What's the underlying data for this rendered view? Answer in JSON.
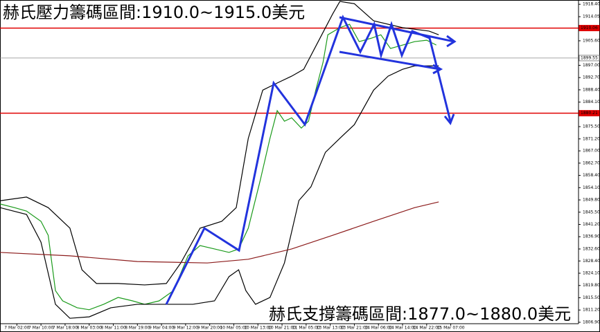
{
  "chart_data": {
    "type": "line",
    "annotations": [
      "赫氏壓力籌碼區間:1910.0~1915.0美元",
      "赫氏支撐籌碼區間:1877.0~1880.0美元"
    ],
    "xlim": [
      0,
      240
    ],
    "xticks": [
      {
        "value": 7,
        "label": "7 Mar 02:00"
      },
      {
        "value": 17,
        "label": "7 Mar 10:00"
      },
      {
        "value": 27,
        "label": "7 Mar 18:00"
      },
      {
        "value": 37,
        "label": "8 Mar 03:00"
      },
      {
        "value": 47,
        "label": "8 Mar 11:00"
      },
      {
        "value": 57,
        "label": "8 Mar 19:00"
      },
      {
        "value": 67,
        "label": "9 Mar 04:00"
      },
      {
        "value": 77,
        "label": "9 Mar 12:00"
      },
      {
        "value": 87,
        "label": "9 Mar 20:00"
      },
      {
        "value": 97,
        "label": "10 Mar 05:00"
      },
      {
        "value": 107,
        "label": "10 Mar 13:00"
      },
      {
        "value": 117,
        "label": "10 Mar 21:00"
      },
      {
        "value": 127,
        "label": "11 Mar 05:00"
      },
      {
        "value": 137,
        "label": "13 Mar 13:00"
      },
      {
        "value": 147,
        "label": "13 Mar 21:00"
      },
      {
        "value": 157,
        "label": "14 Mar 06:00"
      },
      {
        "value": 167,
        "label": "14 Mar 14:00"
      },
      {
        "value": 177,
        "label": "14 Mar 22:00"
      },
      {
        "value": 187,
        "label": "15 Mar 07:00"
      }
    ],
    "ylim": [
      1806.4,
      1919.9
    ],
    "yticks": [
      {
        "value": 1918.4,
        "label": "1918.40"
      },
      {
        "value": 1914.05,
        "label": "1914.05"
      },
      {
        "value": 1905.6,
        "label": "1905.60"
      },
      {
        "value": 1897.0,
        "label": "1897.00"
      },
      {
        "value": 1892.7,
        "label": "1892.70"
      },
      {
        "value": 1888.4,
        "label": "1888.40"
      },
      {
        "value": 1884.1,
        "label": "1884.10"
      },
      {
        "value": 1875.5,
        "label": "1875.50"
      },
      {
        "value": 1871.2,
        "label": "1871.20"
      },
      {
        "value": 1867.0,
        "label": "1867.00"
      },
      {
        "value": 1862.7,
        "label": "1862.70"
      },
      {
        "value": 1858.4,
        "label": "1858.40"
      },
      {
        "value": 1854.1,
        "label": "1854.10"
      },
      {
        "value": 1849.8,
        "label": "1849.80"
      },
      {
        "value": 1845.5,
        "label": "1845.50"
      },
      {
        "value": 1841.2,
        "label": "1841.20"
      },
      {
        "value": 1836.9,
        "label": "1836.90"
      },
      {
        "value": 1832.6,
        "label": "1832.60"
      },
      {
        "value": 1828.4,
        "label": "1828.40"
      },
      {
        "value": 1824.1,
        "label": "1824.10"
      },
      {
        "value": 1819.8,
        "label": "1819.80"
      },
      {
        "value": 1815.5,
        "label": "1815.50"
      },
      {
        "value": 1811.2,
        "label": "1811.20"
      },
      {
        "value": 1806.9,
        "label": "1806.90"
      }
    ],
    "levels": [
      {
        "value": 1910.06,
        "label": "1910.06",
        "color": "#e00000"
      },
      {
        "value": 1880.21,
        "label": "1880.21",
        "color": "#e00000"
      },
      {
        "value": 1899.55,
        "label": "1899.55",
        "color": "#888888"
      }
    ],
    "series": [
      {
        "color": "#1a9a1a",
        "x": [
          0,
          6,
          11,
          17,
          20,
          23,
          26,
          32,
          37,
          43,
          49,
          55,
          60,
          66,
          72,
          78,
          83,
          89,
          95,
          99,
          103,
          108,
          112,
          115,
          118,
          121,
          125,
          128,
          131,
          134,
          136,
          141,
          145,
          149,
          154,
          158,
          162,
          167,
          172,
          177,
          181
        ],
        "values": [
          1848.4,
          1847.1,
          1845.9,
          1842.3,
          1837.4,
          1818.0,
          1814.4,
          1812.0,
          1811.3,
          1813.2,
          1815.6,
          1814.4,
          1813.2,
          1814.4,
          1818.0,
          1830.2,
          1833.8,
          1832.6,
          1831.4,
          1832.6,
          1839.9,
          1856.8,
          1871.4,
          1881.1,
          1877.4,
          1878.6,
          1875.0,
          1877.4,
          1888.3,
          1898.0,
          1907.7,
          1910.2,
          1911.4,
          1905.3,
          1906.5,
          1907.7,
          1902.9,
          1904.1,
          1905.3,
          1905.8,
          1904.1
        ]
      },
      {
        "color": "#000000",
        "x": [
          0,
          11,
          20,
          29,
          34,
          40,
          49,
          60,
          69,
          75,
          83,
          92,
          98,
          103,
          109,
          115,
          121,
          126,
          132,
          138,
          141,
          147,
          155,
          167,
          178,
          182
        ],
        "values": [
          1849.5,
          1850.8,
          1847.1,
          1839.9,
          1825.3,
          1820.5,
          1820.5,
          1820.0,
          1820.5,
          1827.7,
          1839.9,
          1842.3,
          1847.1,
          1871.4,
          1888.3,
          1890.8,
          1893.2,
          1895.6,
          1905.3,
          1915.0,
          1919.4,
          1918.6,
          1912.6,
          1910.2,
          1909.0,
          1907.7
        ]
      },
      {
        "color": "#000000",
        "x": [
          0,
          11,
          17,
          23,
          29,
          37,
          46,
          57,
          69,
          80,
          89,
          95,
          99,
          102,
          106,
          112,
          118,
          124,
          129,
          135,
          141,
          147,
          155,
          161,
          167,
          172,
          182
        ],
        "values": [
          1847.1,
          1844.7,
          1835.0,
          1813.2,
          1808.3,
          1808.8,
          1812.0,
          1813.2,
          1813.2,
          1813.2,
          1814.4,
          1822.9,
          1825.3,
          1818.0,
          1813.2,
          1815.6,
          1827.7,
          1849.6,
          1854.4,
          1866.5,
          1871.4,
          1876.2,
          1888.3,
          1893.2,
          1895.6,
          1896.8,
          1896.8
        ]
      },
      {
        "color": "#8b1a1a",
        "x": [
          0,
          29,
          57,
          86,
          103,
          121,
          138,
          155,
          172,
          182
        ],
        "values": [
          1831.4,
          1830.2,
          1828.2,
          1827.7,
          1829.0,
          1832.6,
          1837.4,
          1842.3,
          1847.1,
          1849.1
        ]
      }
    ]
  }
}
